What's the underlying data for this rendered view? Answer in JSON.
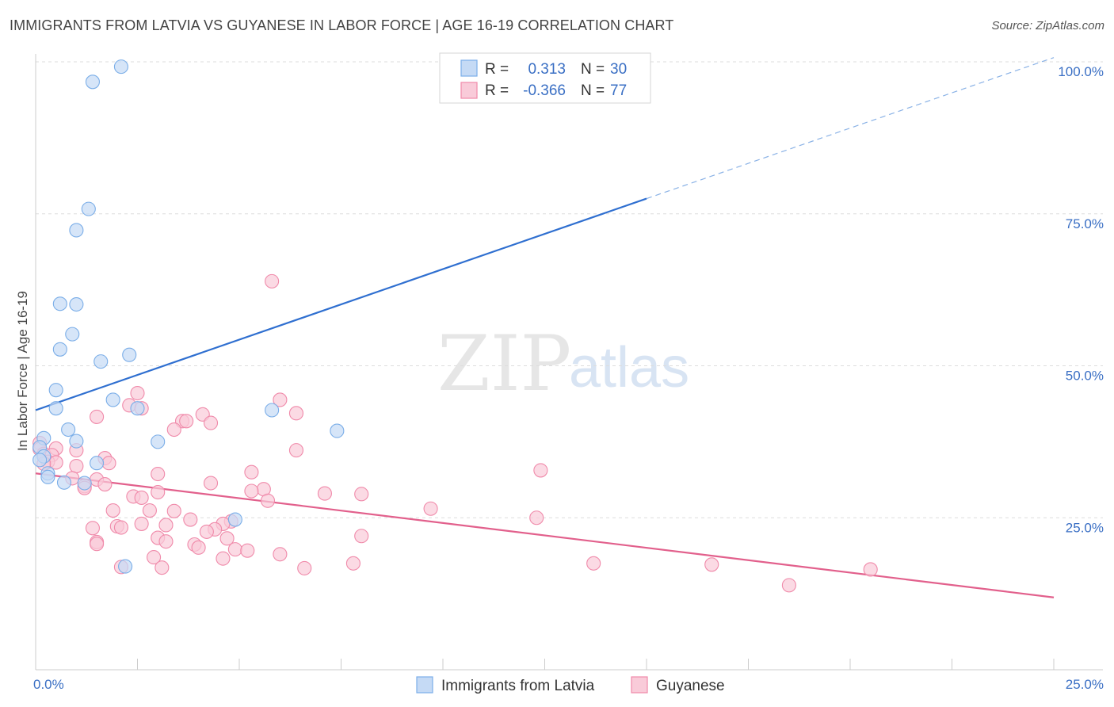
{
  "title": "IMMIGRANTS FROM LATVIA VS GUYANESE IN LABOR FORCE | AGE 16-19 CORRELATION CHART",
  "source": "Source: ZipAtlas.com",
  "watermark": {
    "zip": "ZIP",
    "atlas": "atlas"
  },
  "chart_data": {
    "type": "scatter",
    "ylabel": "In Labor Force | Age 16-19",
    "xlim": [
      0,
      25
    ],
    "ylim": [
      0,
      100
    ],
    "x_ticks": [
      "0.0%",
      "25.0%"
    ],
    "y_ticks": [
      "25.0%",
      "50.0%",
      "75.0%",
      "100.0%"
    ],
    "legend_stats": [
      {
        "r_label": "R =",
        "r_value": "0.313",
        "n_label": "N =",
        "n_value": "30"
      },
      {
        "r_label": "R =",
        "r_value": "-0.366",
        "n_label": "N =",
        "n_value": "77"
      }
    ],
    "series": [
      {
        "name": "Immigrants from Latvia",
        "color": "#7baee8",
        "fill": "#c5daf5",
        "trend": {
          "x0": 0,
          "y0": 42.7,
          "x1": 15.0,
          "y1": 77.5,
          "x_dash_end": 25.0,
          "y_dash_end": 100.7
        },
        "points": [
          [
            2.1,
            99.2
          ],
          [
            1.4,
            96.7
          ],
          [
            1.3,
            75.8
          ],
          [
            1.0,
            72.3
          ],
          [
            0.6,
            60.2
          ],
          [
            1.0,
            60.1
          ],
          [
            0.9,
            55.2
          ],
          [
            0.6,
            52.7
          ],
          [
            1.6,
            50.7
          ],
          [
            2.3,
            51.8
          ],
          [
            0.5,
            46.0
          ],
          [
            1.9,
            44.4
          ],
          [
            0.5,
            43.0
          ],
          [
            2.5,
            43.0
          ],
          [
            5.8,
            42.7
          ],
          [
            0.8,
            39.5
          ],
          [
            7.4,
            39.3
          ],
          [
            1.0,
            37.6
          ],
          [
            3.0,
            37.5
          ],
          [
            0.2,
            38.1
          ],
          [
            0.1,
            36.6
          ],
          [
            0.2,
            35.1
          ],
          [
            1.5,
            34.0
          ],
          [
            0.3,
            32.3
          ],
          [
            0.3,
            31.7
          ],
          [
            1.2,
            30.7
          ],
          [
            0.7,
            30.8
          ],
          [
            4.9,
            24.7
          ],
          [
            2.2,
            17.0
          ],
          [
            0.1,
            34.5
          ]
        ]
      },
      {
        "name": "Guyanese",
        "color": "#f08aaa",
        "fill": "#f9cbd9",
        "trend": {
          "x0": 0,
          "y0": 32.3,
          "x1": 25.0,
          "y1": 11.9
        },
        "points": [
          [
            5.8,
            63.9
          ],
          [
            2.5,
            45.5
          ],
          [
            6.0,
            44.4
          ],
          [
            2.3,
            43.5
          ],
          [
            2.6,
            43.0
          ],
          [
            6.4,
            42.2
          ],
          [
            4.1,
            42.0
          ],
          [
            1.5,
            41.6
          ],
          [
            3.6,
            40.9
          ],
          [
            3.7,
            40.9
          ],
          [
            4.3,
            40.6
          ],
          [
            3.4,
            39.5
          ],
          [
            0.1,
            37.3
          ],
          [
            0.5,
            36.4
          ],
          [
            0.1,
            36.3
          ],
          [
            1.0,
            36.1
          ],
          [
            6.4,
            36.1
          ],
          [
            0.2,
            35.5
          ],
          [
            0.4,
            35.3
          ],
          [
            1.7,
            34.8
          ],
          [
            0.3,
            34.2
          ],
          [
            0.5,
            34.1
          ],
          [
            1.8,
            34.0
          ],
          [
            0.2,
            33.9
          ],
          [
            1.0,
            33.5
          ],
          [
            12.4,
            32.8
          ],
          [
            5.3,
            32.5
          ],
          [
            3.0,
            32.2
          ],
          [
            0.9,
            31.5
          ],
          [
            1.5,
            31.3
          ],
          [
            4.3,
            30.7
          ],
          [
            1.7,
            30.5
          ],
          [
            1.2,
            30.2
          ],
          [
            1.2,
            29.9
          ],
          [
            5.6,
            29.7
          ],
          [
            5.3,
            29.4
          ],
          [
            3.0,
            29.2
          ],
          [
            7.1,
            29.0
          ],
          [
            8.0,
            28.9
          ],
          [
            2.4,
            28.5
          ],
          [
            2.6,
            28.3
          ],
          [
            5.7,
            27.8
          ],
          [
            9.7,
            26.5
          ],
          [
            1.9,
            26.2
          ],
          [
            2.8,
            26.2
          ],
          [
            3.4,
            26.1
          ],
          [
            12.3,
            25.0
          ],
          [
            3.8,
            24.7
          ],
          [
            4.8,
            24.4
          ],
          [
            4.6,
            24.0
          ],
          [
            2.6,
            24.0
          ],
          [
            3.2,
            23.8
          ],
          [
            2.0,
            23.6
          ],
          [
            2.1,
            23.4
          ],
          [
            1.4,
            23.3
          ],
          [
            4.4,
            23.1
          ],
          [
            4.2,
            22.7
          ],
          [
            8.0,
            22.0
          ],
          [
            3.0,
            21.7
          ],
          [
            4.7,
            21.6
          ],
          [
            3.2,
            21.1
          ],
          [
            1.5,
            21.0
          ],
          [
            1.5,
            20.7
          ],
          [
            3.9,
            20.6
          ],
          [
            4.0,
            20.1
          ],
          [
            4.9,
            19.8
          ],
          [
            5.2,
            19.6
          ],
          [
            6.0,
            19.0
          ],
          [
            2.9,
            18.5
          ],
          [
            4.6,
            18.3
          ],
          [
            7.8,
            17.5
          ],
          [
            13.7,
            17.5
          ],
          [
            16.6,
            17.3
          ],
          [
            2.1,
            16.9
          ],
          [
            3.1,
            16.8
          ],
          [
            6.6,
            16.7
          ],
          [
            20.5,
            16.5
          ],
          [
            18.5,
            13.9
          ]
        ]
      }
    ]
  }
}
